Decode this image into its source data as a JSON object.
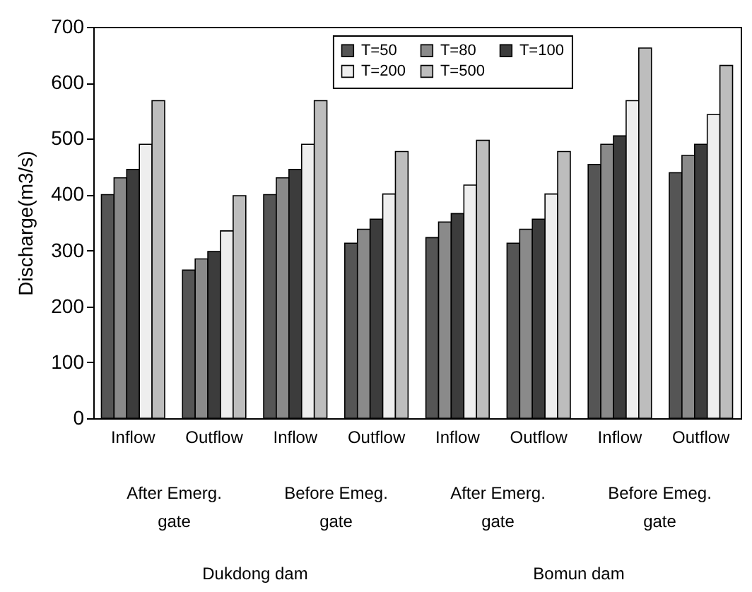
{
  "chart_data": {
    "type": "bar",
    "ylabel": "Discharge(m3/s)",
    "categories": [
      "Inflow",
      "Outflow",
      "Inflow",
      "Outflow",
      "Inflow",
      "Outflow",
      "Inflow",
      "Outflow"
    ],
    "series": [
      {
        "name": "T=50",
        "color": "#555555",
        "values": [
          400,
          265,
          400,
          313,
          323,
          313,
          454,
          439
        ]
      },
      {
        "name": "T=80",
        "color": "#8a8a8a",
        "values": [
          430,
          285,
          430,
          338,
          351,
          338,
          490,
          470
        ]
      },
      {
        "name": "T=100",
        "color": "#3c3c3c",
        "values": [
          445,
          298,
          445,
          356,
          366,
          356,
          505,
          490
        ]
      },
      {
        "name": "T=200",
        "color": "#eeeeee",
        "values": [
          490,
          335,
          490,
          401,
          417,
          401,
          568,
          543
        ]
      },
      {
        "name": "T=500",
        "color": "#bdbdbd",
        "values": [
          568,
          398,
          568,
          477,
          497,
          477,
          662,
          631
        ]
      }
    ],
    "ylim": [
      0,
      700
    ],
    "yticks": [
      0,
      100,
      200,
      300,
      400,
      500,
      600,
      700
    ],
    "grid": false,
    "legend": "top right",
    "annotations": [
      "After Emerg. gate",
      "Before Emeg. gate",
      "After Emerg. gate",
      "Before Emeg. gate",
      "Dukdong dam",
      "Bomun dam"
    ]
  }
}
